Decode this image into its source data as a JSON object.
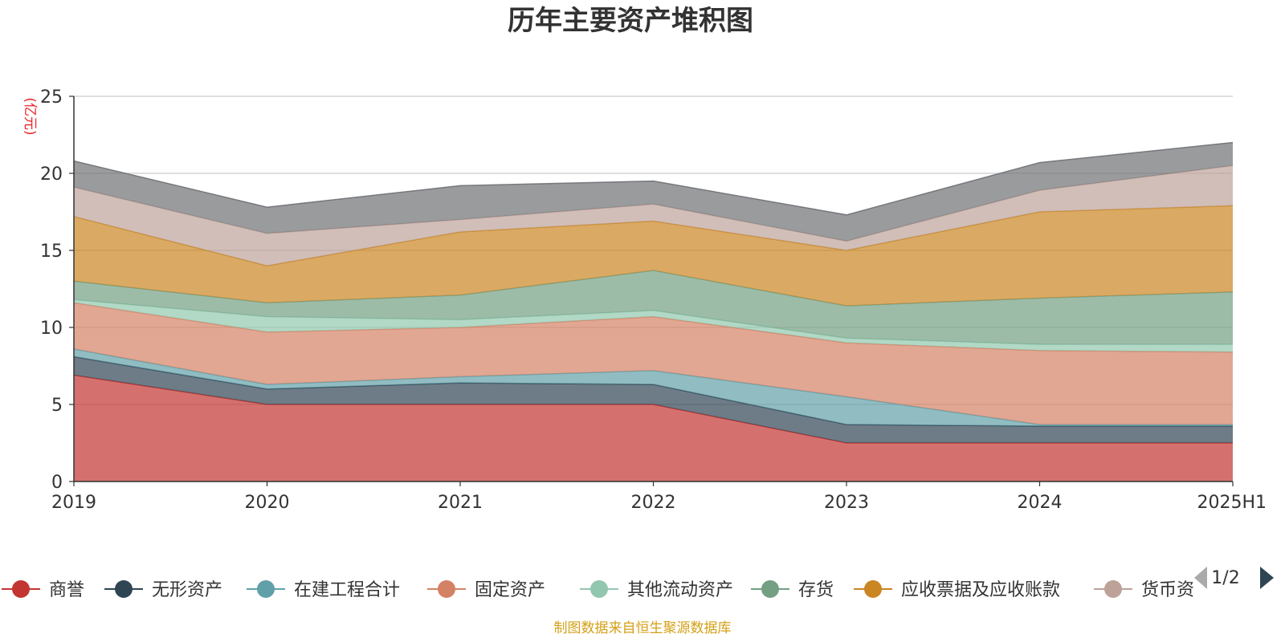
{
  "chart_data": {
    "type": "area",
    "stacked": true,
    "title": "历年主要资产堆积图",
    "ylabel": "(亿元)",
    "ylim": [
      0,
      25
    ],
    "yticks": [
      "0",
      "5",
      "10",
      "15",
      "20",
      "25"
    ],
    "grid": true,
    "legend_position": "bottom",
    "categories": [
      "2019",
      "2020",
      "2021",
      "2022",
      "2023",
      "2024",
      "2025H1"
    ],
    "series": [
      {
        "name": "商誉",
        "color": "#c23531",
        "values": [
          6.9,
          5.0,
          5.0,
          5.0,
          2.5,
          2.5,
          2.5
        ]
      },
      {
        "name": "无形资产",
        "color": "#2f4554",
        "values": [
          1.2,
          1.0,
          1.4,
          1.3,
          1.2,
          1.1,
          1.1
        ]
      },
      {
        "name": "在建工程合计",
        "color": "#61a0a8",
        "values": [
          0.5,
          0.3,
          0.4,
          0.9,
          1.8,
          0.1,
          0.1
        ]
      },
      {
        "name": "固定资产",
        "color": "#d48265",
        "values": [
          3.0,
          3.4,
          3.2,
          3.5,
          3.5,
          4.8,
          4.7
        ]
      },
      {
        "name": "其他流动资产",
        "color": "#91c7ae",
        "values": [
          0.2,
          1.0,
          0.5,
          0.4,
          0.3,
          0.4,
          0.5
        ]
      },
      {
        "name": "存货",
        "color": "#749f83",
        "values": [
          1.2,
          0.9,
          1.6,
          2.6,
          2.1,
          3.0,
          3.4
        ]
      },
      {
        "name": "应收票据及应收账款",
        "color": "#ca8622",
        "values": [
          4.2,
          2.4,
          4.1,
          3.2,
          3.6,
          5.6,
          5.6
        ]
      },
      {
        "name": "货币资金",
        "color": "#bda29a",
        "values": [
          1.9,
          2.1,
          0.8,
          1.1,
          0.6,
          1.4,
          2.6
        ]
      },
      {
        "name": "",
        "color": "#6e7074",
        "values": [
          1.7,
          1.7,
          2.2,
          1.5,
          1.7,
          1.8,
          1.5
        ]
      }
    ]
  },
  "legend_labels": [
    "商誉",
    "无形资产",
    "在建工程合计",
    "固定资产",
    "其他流动资产",
    "存货",
    "应收票据及应收账款",
    "货币资"
  ],
  "legend_page": "1/2",
  "source_note": "制图数据来自恒生聚源数据库"
}
